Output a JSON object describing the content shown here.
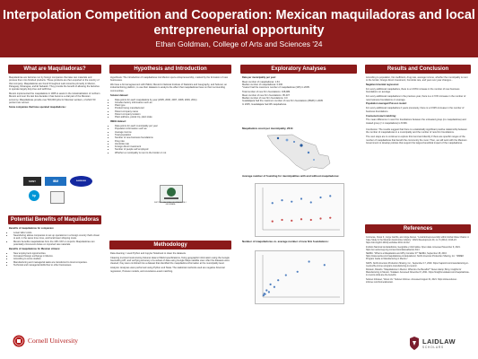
{
  "poster": {
    "title": "Interpolation Competition and Cooperation: Mexican maquiladoras and local entrepreneurial opportunity",
    "author": "Ethan Goldman, College of Arts and Sciences '24"
  },
  "left": {
    "what_head": "What are Maquiladoras?",
    "what_p1": "Maquiladoras are factories run by foreign companies that take raw materials and process them into finished products. These products are then exported to the country of that company. Maquiladoras are found throughout Latin America primarily in Mexico, Paraguay, Nicaragua, and El Salvador. They provide the benefit of allowing the factories to operate largely duty-free and tariff-free.",
    "what_p2": "Mexico implemented the maquiladora in 1965 to assist in the industrialization of northern Mexico and over the last few decades it has become a vital part of the Mexican economy. Maquiladoras provide over 500,000 jobs for Mexican workers, of which 50 percent are women.",
    "logos_label": "Some companies that have operated maquiladoras:",
    "logo_texts": [
      "SONY",
      "IBM",
      "SAMSUNG",
      "hp",
      "INSTITUTO NACIONAL DE ESTADÍSTICA Y GEOGRAFÍA"
    ],
    "pot_head": "Potential Benefits of Maquiladoras",
    "ben_h1": "Benefits of maquiladoras for companies:",
    "ben_list1": [
      "Lower labor costs.",
      "Nearshoring allows companies to set up operations in a foreign country that's closer to and, in the same time zone, and local lower shipping costs.",
      "Mexico benefits maquiladoras from the 16% VAT on imports: Maquiladoras can potentially circumvent duties on imported raw materials."
    ],
    "ben_h2": "Benefits of maquiladoras for Mexican citizens:",
    "ben_list2": [
      "New employment opportunities.",
      "Increased foreign exchange in Mexico.",
      "According to some studies:",
      "Manufacturing and managerial tasks are transferred to local companies.",
      "Technical and managerial skills flow to other businesses."
    ],
    "cornell": "Cornell University"
  },
  "mid": {
    "hyp_head": "Hypothesis and Introduction",
    "hyp_p1": "Hypothesis: The introduction of maquiladoras into Mexico spurs entrepreneurship, marked by the formation of new businesses.",
    "hyp_p2": "We have a formal agreement with INEGI, Mexico's National Institute of Statistics and Geography, and Solunet, an industrial listing platform, to use their datasets to analyze the effect that maquiladoras have on their surrounding communities.",
    "ds_head": "Solunet dataset:",
    "ds_list": [
      "Data points for each maquiladora by year (2005, 2006, 2007, 2008, 2009, 2011)",
      "Includes factory information such as:",
      "Plant type",
      "Product being manufactured",
      "Parent company name",
      "Parent company location",
      "Plant address, postal zip, plant state"
    ],
    "inegi_head": "INEGI dataset:",
    "inegi_list": [
      "Data points for each municipality per year",
      "Population information such as:",
      "Average income",
      "Total population",
      "Number of new business foundations",
      "Drug rate",
      "Homicide rate",
      "Foreign direct investment",
      "Number of people self employed",
      "Whether a municipality is next to the border or not"
    ],
    "meth_head": "Methodology",
    "meth_p1": "Data cleaning: I used Python and Jupyter Notebook to clean the datasets.",
    "meth_p2": "Cleaning involved restructuring Solunet data to INEGI specifications, fixing geographic information using the Google Geocoding API, and verifying accuracy of a subset of data using Google Maps satellite view. After the datasets were cleaned, they were combined into a dataset that identified the maquiladora information at the municipality level.",
    "meth_p3": "Analysis: Analyses were performed using Python and Stata. The statistical methods used are negative binomial regression, Poisson models, and covariance-exact matching."
  },
  "expl": {
    "head": "Exploratory Analyses",
    "head_stats": "Data per municipality per year:",
    "stats": [
      "Mean number of maquiladoras: 1.64",
      "Median number of maquiladoras: 0.000",
      "*Juarez had the maximum number of maquiladoras (325) in 2005.",
      "Total number of new firm foundations: 168,984",
      "Mean number of new firm foundations: 95.437",
      "Median number of new firm foundations: 0.0",
      "Guadalajara had the maximum number of new firm foundations (8528) in 2005",
      "In 2005, Guadalajara had 38 maquiladoras."
    ],
    "map_cap": "Maquiladora count per municipality, 2011:",
    "scatter_cap": "Average number of founding for municipalities with and without maquiladoras:",
    "scatter2_cap": "Number of maquiladoras vs. average number of new firm foundations:"
  },
  "right": {
    "res_head": "Results and Conclusion",
    "res_p1": "According to population, fist coefficient, drug rate, average income, whether the municipality is next to the border, foreign direct investment, homicide rate, and year over year changes...",
    "nb_head": "Negative binomial regression:",
    "nb_p1": "For every additional maquiladora, there is a 2.63% increase in the number of new business foundations on average.",
    "nb_p2": "For every additional maquiladora in the previous year, there is a 2.72% increase in the number of new business foundations on average.",
    "pp_head": "Population averaged Poisson model:",
    "pp_p1": "For every additional maquiladora 2 years previously, there is a 0.63% increase in the number of business foundations.",
    "ce_head": "Coarsened exact matching:",
    "ce_p1": "The mean difference in new firm foundations between the untreated group (no maquiladoras) and treated group (>1 maquiladora) is 8.096.",
    "concl_p1": "Conclusion: The results suggest that there is a statistically significant positive relationship between the number of maquiladoras in a municipality and the number of new firm foundations.",
    "concl_p2": "The next steps are to continue to explore this trend and identify if there are specific ranges of the number of maquiladoras that benefit the community the most. Then, we will work with the Mexican Government to develop policies that support the largest beneficial impact of the maquiladoras.",
    "ref_head": "References",
    "refs": [
      "Contreras, Oscar F., Jorge Carrillo, and Jorge Alonso. \"Local Entrepreneurship within Global Value Chains: A Case Study in the Mexican Automotive Industry.\" World Development 40, no. 5 (2012): 1013-23. https://doi.org/10.1016/j.worlddev.2011.11.012.",
      "Instituto Nacional de Estadística, Geografía e Informática. Open data. Accessed November 9, 2021. https://en.www.inegi.org.mx/servicios/datosabiertos.html.",
      "SEIRIA. \"What is a Maquiladora and Why Consider It?\" SEIRIA, September 28, 2016. https://www.seiria.com/maquiladoras-considerations/; North American Production Sharing, Inc. \"IMMEX Program Guide to Manufacturing in Mexico.\"",
      "NAPS. North American Production Sharing, Inc., September 17, 2020. https://napsintl.com/manufacturing-in-mexico/the-immex-program-manufacturing-in-mexico/.",
      "Rotstein, Ricardo. \"Maquiladoras in Mexico: What Are the Benefits?\" Nexen &amp; Bony, Insights for Manufacturing in Mexico. Tetakawi. Accessed November 8, 2021. https://insights.tetakawi.com/maquiladoras-in-mexico-what-are-the-benefits",
      "Solunet Infosteel, \"About Us.\" Solunet Infomex. Accessed August 31, 2021. https://www.solunet-infomex.com/home/aboutus/."
    ],
    "laidlaw": "LAIDLAW",
    "laidlaw_sub": "SCHOLARS"
  },
  "chart_data": [
    {
      "type": "scatter",
      "title": "Average number of founding for municipalities with and without maquiladoras:",
      "series": [
        {
          "color": "#4f7fbf",
          "points": [
            [
              2005,
              38
            ],
            [
              2006,
              42
            ],
            [
              2007,
              40
            ],
            [
              2008,
              44
            ],
            [
              2009,
              39
            ],
            [
              2010,
              46
            ],
            [
              2011,
              48
            ]
          ]
        },
        {
          "color": "#c94c4c",
          "points": [
            [
              2005,
              12
            ],
            [
              2006,
              14
            ],
            [
              2007,
              13
            ],
            [
              2008,
              15
            ],
            [
              2009,
              14
            ],
            [
              2010,
              16
            ],
            [
              2011,
              17
            ]
          ]
        }
      ],
      "xlim": [
        2004,
        2012
      ],
      "ylim": [
        0,
        60
      ]
    },
    {
      "type": "scatter",
      "title": "Number of maquiladoras vs. average number of new firm foundations:",
      "series": [
        {
          "color": "#4f7fbf",
          "points": [
            [
              1,
              20
            ],
            [
              2,
              40
            ],
            [
              3,
              35
            ],
            [
              5,
              80
            ],
            [
              8,
              60
            ],
            [
              10,
              150
            ],
            [
              15,
              120
            ],
            [
              20,
              200
            ],
            [
              30,
              260
            ],
            [
              45,
              300
            ],
            [
              60,
              420
            ],
            [
              80,
              380
            ]
          ]
        }
      ],
      "xlim": [
        0,
        100
      ],
      "ylim": [
        0,
        500
      ]
    }
  ]
}
